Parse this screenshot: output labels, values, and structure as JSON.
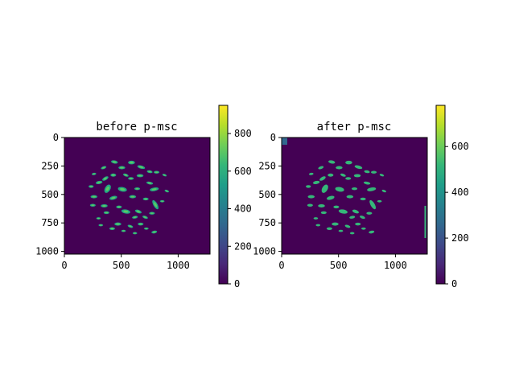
{
  "colors": {
    "background": "#440154",
    "blob_before": "#22a884",
    "blob_before_core": "#5ec962",
    "blob_after": "#35b779",
    "colormap": [
      "#440154",
      "#482878",
      "#3e4a89",
      "#31688e",
      "#26828e",
      "#1f9e89",
      "#35b779",
      "#6ece58",
      "#b5de2b",
      "#fde725"
    ]
  },
  "chart_data": [
    {
      "type": "heatmap",
      "title": "before p-msc",
      "xlabel": "",
      "ylabel": "",
      "xlim": [
        0,
        1280
      ],
      "ylim": [
        1024,
        0
      ],
      "xticks": [
        "0",
        "500",
        "1000"
      ],
      "xtick_values": [
        0,
        500,
        1000
      ],
      "yticks": [
        "0",
        "250",
        "500",
        "750",
        "1000"
      ],
      "ytick_values": [
        0,
        250,
        500,
        750,
        1000
      ],
      "colorbar": {
        "range": [
          0,
          950
        ],
        "ticks": [
          "0",
          "200",
          "400",
          "600",
          "800"
        ],
        "tick_values": [
          0,
          200,
          400,
          600,
          800
        ],
        "colormap": "viridis"
      }
    },
    {
      "type": "heatmap",
      "title": "after p-msc",
      "xlabel": "",
      "ylabel": "",
      "xlim": [
        0,
        1280
      ],
      "ylim": [
        1024,
        0
      ],
      "xticks": [
        "0",
        "500",
        "1000"
      ],
      "xtick_values": [
        0,
        500,
        1000
      ],
      "yticks": [
        "0",
        "250",
        "500",
        "750",
        "1000"
      ],
      "ytick_values": [
        0,
        250,
        500,
        750,
        1000
      ],
      "colorbar": {
        "range": [
          0,
          780
        ],
        "ticks": [
          "0",
          "200",
          "400",
          "600"
        ],
        "tick_values": [
          0,
          200,
          400,
          600
        ],
        "colormap": "viridis"
      }
    }
  ]
}
